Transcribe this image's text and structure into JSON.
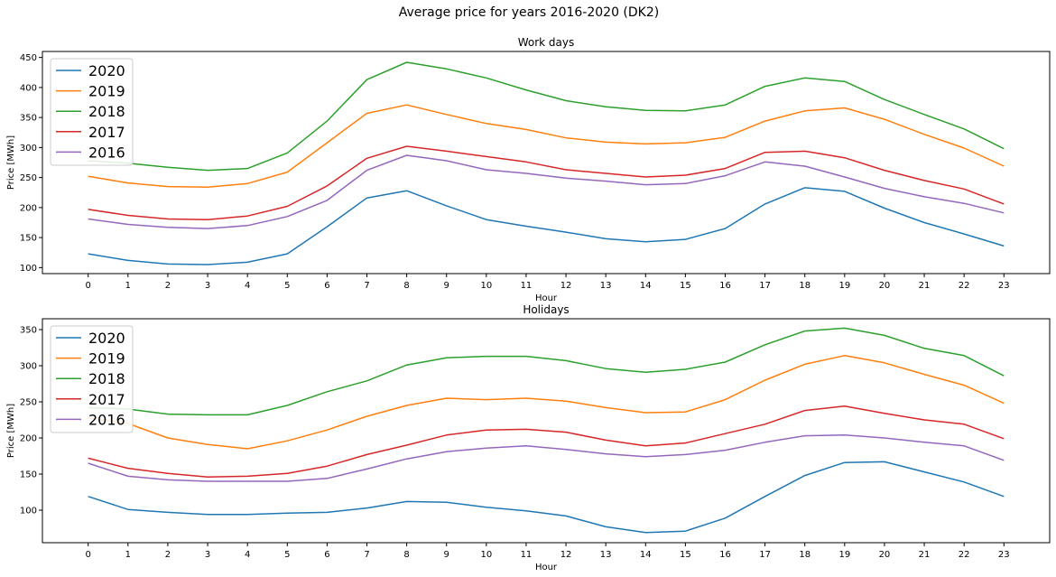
{
  "figure": {
    "suptitle": "Average price for years 2016-2020 (DK2)"
  },
  "colors": {
    "2020": "#1f77b4",
    "2019": "#ff7f0e",
    "2018": "#2ca02c",
    "2017": "#d62728",
    "2016": "#9467bd"
  },
  "chart_data": [
    {
      "type": "line",
      "title": "Work days",
      "xlabel": "Hour",
      "ylabel": "Price [MWh]",
      "x": [
        0,
        1,
        2,
        3,
        4,
        5,
        6,
        7,
        8,
        9,
        10,
        11,
        12,
        13,
        14,
        15,
        16,
        17,
        18,
        19,
        20,
        21,
        22,
        23
      ],
      "xlim": [
        -1.15,
        24.15
      ],
      "ylim": [
        90,
        460
      ],
      "yticks": [
        100,
        150,
        200,
        250,
        300,
        350,
        400,
        450
      ],
      "grid": false,
      "legend_position": "top-left",
      "series": [
        {
          "name": "2020",
          "color": "#1f77b4",
          "values": [
            123,
            112,
            106,
            105,
            109,
            123,
            168,
            216,
            228,
            203,
            180,
            169,
            159,
            148,
            143,
            147,
            165,
            206,
            233,
            227,
            199,
            175,
            156,
            136
          ]
        },
        {
          "name": "2019",
          "color": "#ff7f0e",
          "values": [
            252,
            241,
            235,
            234,
            240,
            259,
            308,
            357,
            371,
            355,
            340,
            330,
            316,
            309,
            306,
            308,
            317,
            344,
            361,
            366,
            347,
            322,
            299,
            269
          ]
        },
        {
          "name": "2018",
          "color": "#2ca02c",
          "values": [
            278,
            274,
            267,
            262,
            265,
            291,
            344,
            413,
            442,
            431,
            416,
            396,
            378,
            368,
            362,
            361,
            371,
            402,
            416,
            410,
            380,
            355,
            331,
            298
          ]
        },
        {
          "name": "2017",
          "color": "#d62728",
          "values": [
            197,
            187,
            181,
            180,
            186,
            202,
            236,
            282,
            302,
            294,
            285,
            276,
            263,
            257,
            251,
            254,
            265,
            292,
            294,
            283,
            262,
            245,
            231,
            206
          ]
        },
        {
          "name": "2016",
          "color": "#9467bd",
          "values": [
            181,
            172,
            167,
            165,
            170,
            185,
            212,
            262,
            287,
            278,
            263,
            257,
            249,
            244,
            238,
            240,
            253,
            276,
            269,
            251,
            232,
            218,
            207,
            191
          ]
        }
      ]
    },
    {
      "type": "line",
      "title": "Holidays",
      "xlabel": "Hour",
      "ylabel": "Price [MWh]",
      "x": [
        0,
        1,
        2,
        3,
        4,
        5,
        6,
        7,
        8,
        9,
        10,
        11,
        12,
        13,
        14,
        15,
        16,
        17,
        18,
        19,
        20,
        21,
        22,
        23
      ],
      "xlim": [
        -1.15,
        24.15
      ],
      "ylim": [
        55,
        365
      ],
      "yticks": [
        100,
        150,
        200,
        250,
        300,
        350
      ],
      "grid": false,
      "legend_position": "top-left",
      "series": [
        {
          "name": "2020",
          "color": "#1f77b4",
          "values": [
            119,
            101,
            97,
            94,
            94,
            96,
            97,
            103,
            112,
            111,
            104,
            99,
            92,
            77,
            69,
            71,
            89,
            119,
            148,
            166,
            167,
            153,
            139,
            119
          ]
        },
        {
          "name": "2019",
          "color": "#ff7f0e",
          "values": [
            228,
            220,
            200,
            191,
            185,
            196,
            211,
            230,
            245,
            255,
            253,
            255,
            251,
            242,
            235,
            236,
            253,
            280,
            302,
            314,
            304,
            288,
            273,
            248
          ]
        },
        {
          "name": "2018",
          "color": "#2ca02c",
          "values": [
            242,
            240,
            233,
            232,
            232,
            245,
            264,
            279,
            301,
            311,
            313,
            313,
            307,
            296,
            291,
            295,
            305,
            329,
            348,
            352,
            342,
            324,
            314,
            286
          ]
        },
        {
          "name": "2017",
          "color": "#d62728",
          "values": [
            172,
            158,
            151,
            146,
            147,
            151,
            161,
            177,
            190,
            204,
            211,
            212,
            208,
            197,
            189,
            193,
            206,
            219,
            238,
            244,
            234,
            225,
            219,
            199
          ]
        },
        {
          "name": "2016",
          "color": "#9467bd",
          "values": [
            165,
            147,
            142,
            140,
            140,
            140,
            144,
            157,
            171,
            181,
            186,
            189,
            184,
            178,
            174,
            177,
            183,
            194,
            203,
            204,
            200,
            194,
            189,
            169
          ]
        }
      ]
    }
  ]
}
